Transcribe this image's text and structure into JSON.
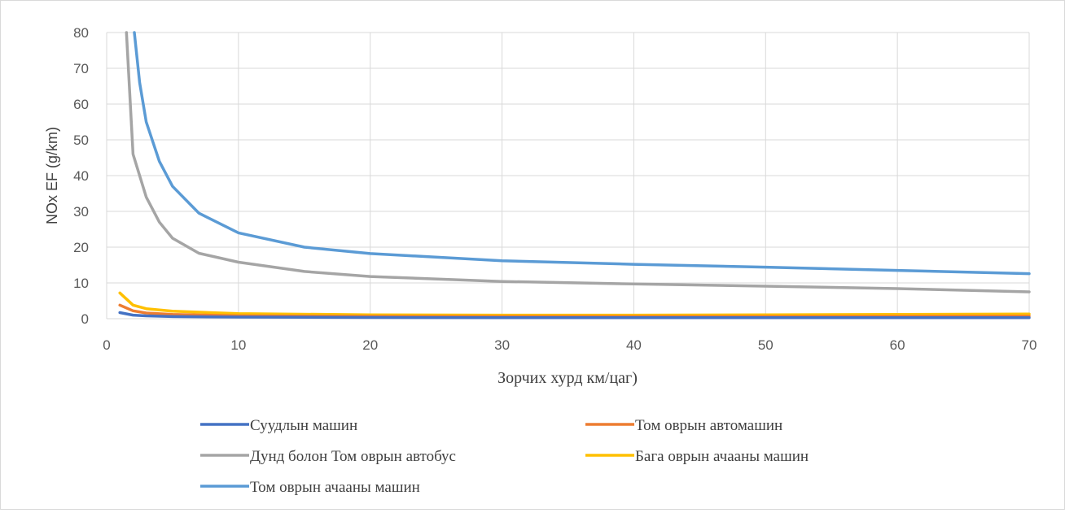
{
  "chart_data": {
    "type": "line",
    "title": "",
    "xlabel": "Зорчих хурд км/цаг)",
    "ylabel": "NOx EF (g/km)",
    "xlim": [
      0,
      70
    ],
    "ylim": [
      0,
      80
    ],
    "x_ticks": [
      0,
      10,
      20,
      30,
      40,
      50,
      60,
      70
    ],
    "y_ticks": [
      0,
      10,
      20,
      30,
      40,
      50,
      60,
      70,
      80
    ],
    "grid": true,
    "legend_position": "bottom",
    "series": [
      {
        "name": "Суудлын машин",
        "color": "#4472C4",
        "x": [
          1,
          2,
          3,
          5,
          10,
          20,
          30,
          40,
          50,
          60,
          70
        ],
        "y": [
          1.7,
          1.0,
          0.8,
          0.6,
          0.45,
          0.35,
          0.3,
          0.3,
          0.3,
          0.3,
          0.3
        ]
      },
      {
        "name": "Том оврын автомашин",
        "color": "#ED7D31",
        "x": [
          1,
          2,
          3,
          5,
          10,
          20,
          30,
          40,
          50,
          60,
          70
        ],
        "y": [
          3.8,
          2.2,
          1.6,
          1.2,
          0.8,
          0.65,
          0.6,
          0.6,
          0.6,
          0.65,
          0.7
        ]
      },
      {
        "name": "Дунд болон Том оврын автобус",
        "color": "#A5A5A5",
        "x": [
          1.5,
          2,
          3,
          4,
          5,
          7,
          10,
          15,
          20,
          30,
          40,
          50,
          60,
          70
        ],
        "y": [
          80,
          46,
          34,
          27,
          22.5,
          18.3,
          15.8,
          13.2,
          11.8,
          10.4,
          9.7,
          9.1,
          8.4,
          7.5
        ]
      },
      {
        "name": "Бага оврын ачааны машин",
        "color": "#FFC000",
        "x": [
          1,
          2,
          3,
          5,
          10,
          20,
          30,
          40,
          50,
          60,
          70
        ],
        "y": [
          7.2,
          3.8,
          2.8,
          2.1,
          1.4,
          1.1,
          1.0,
          1.0,
          1.1,
          1.2,
          1.3
        ]
      },
      {
        "name": "Том оврын ачааны машин",
        "color": "#5B9BD5",
        "x": [
          2.1,
          2.5,
          3,
          4,
          5,
          7,
          10,
          15,
          20,
          30,
          40,
          50,
          60,
          70
        ],
        "y": [
          80,
          66,
          55,
          44,
          37,
          29.5,
          24,
          20,
          18.2,
          16.2,
          15.2,
          14.4,
          13.5,
          12.6
        ]
      }
    ]
  }
}
